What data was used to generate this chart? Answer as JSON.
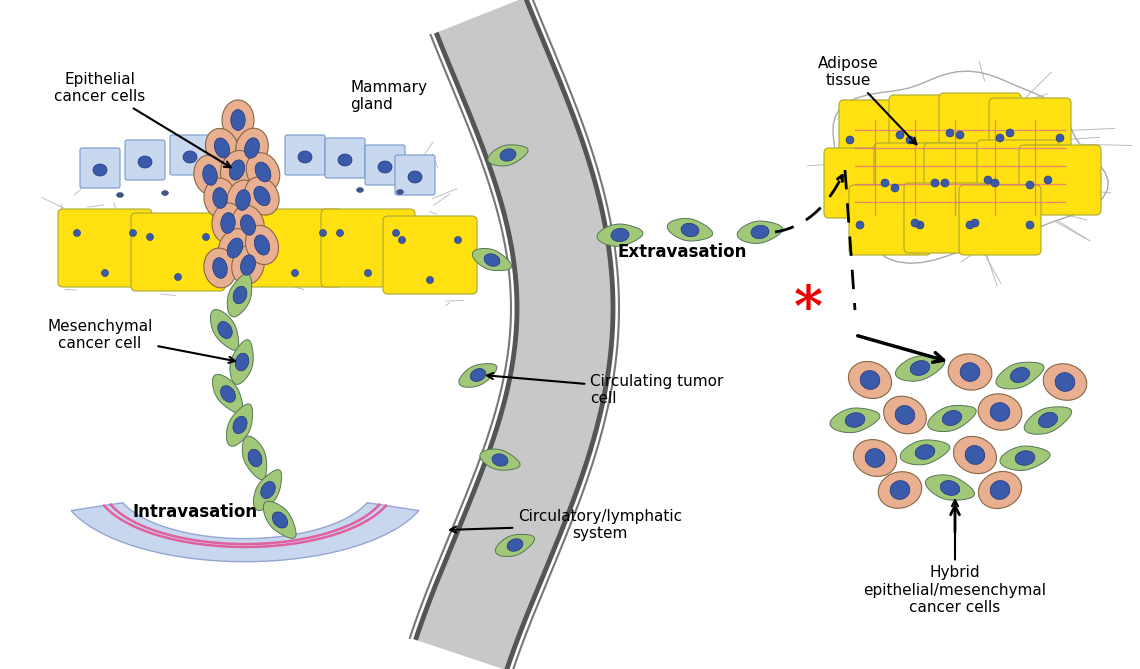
{
  "bg_color": "#ffffff",
  "figsize": [
    11.4,
    6.69
  ],
  "dpi": 100,
  "labels": {
    "epithelial_cancer_cells": "Epithelial\ncancer cells",
    "mammary_gland": "Mammary\ngland",
    "mesenchymal_cancer_cell": "Mesenchymal\ncancer cell",
    "intravasation": "Intravasation",
    "circulatory_lymphatic": "Circulatory/lymphatic\nsystem",
    "circulating_tumor_cell": "Circulating tumor\ncell",
    "extravasation": "Extravasation",
    "adipose_tissue": "Adipose\ntissue",
    "hybrid": "Hybrid\nepithelial/mesenchymal\ncancer cells"
  },
  "colors": {
    "epithelial_cell_fill": "#e8b090",
    "mesenchymal_cell_fill": "#a0c878",
    "nucleus_fill": "#3a5aaa",
    "nucleus_edge": "#223380",
    "yellow_cell": "#FFE010",
    "vessel_gray": "#888888",
    "vessel_light": "#c8c8c8",
    "duct_bg": "#c0d0ec",
    "duct_edge": "#8899cc",
    "pink_line": "#e060a0",
    "fibrous": "#aaaaaa",
    "red_asterisk": "#ee0000",
    "arrow_color": "#111111",
    "cell_edge": "#557755",
    "epi_edge": "#886644"
  }
}
